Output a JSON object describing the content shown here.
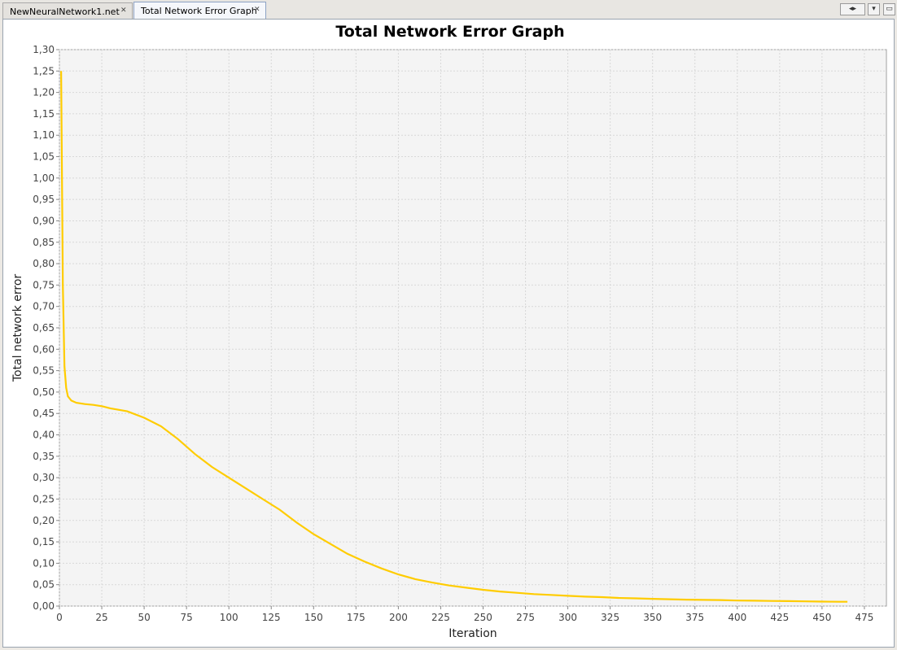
{
  "tabs": [
    {
      "label": "NewNeuralNetwork1.net",
      "active": false,
      "close_icon": "close-icon"
    },
    {
      "label": "Total Network Error Graph",
      "active": true,
      "close_icon": "close-icon"
    }
  ],
  "tab_controls": {
    "scroll_left_icon": "chevron-left-icon",
    "scroll_right_icon": "chevron-right-icon",
    "dropdown_icon": "chevron-down-icon",
    "maximize_icon": "maximize-icon"
  },
  "colors": {
    "line": "#ffcc00",
    "plot_bg": "#f4f4f4",
    "grid": "#d8d8d8"
  },
  "chart_data": {
    "type": "line",
    "title": "Total Network Error Graph",
    "xlabel": "Iteration",
    "ylabel": "Total network error",
    "xlim": [
      0,
      488
    ],
    "ylim": [
      0,
      1.3
    ],
    "x_ticks": [
      0,
      25,
      50,
      75,
      100,
      125,
      150,
      175,
      200,
      225,
      250,
      275,
      300,
      325,
      350,
      375,
      400,
      425,
      450,
      475
    ],
    "y_ticks": [
      "0,00",
      "0,05",
      "0,10",
      "0,15",
      "0,20",
      "0,25",
      "0,30",
      "0,35",
      "0,40",
      "0,45",
      "0,50",
      "0,55",
      "0,60",
      "0,65",
      "0,70",
      "0,75",
      "0,80",
      "0,85",
      "0,90",
      "0,95",
      "1,00",
      "1,05",
      "1,10",
      "1,15",
      "1,20",
      "1,25",
      "1,30"
    ],
    "grid": true,
    "legend": "none",
    "series": [
      {
        "x": [
          1,
          2,
          3,
          4,
          5,
          7,
          10,
          15,
          20,
          25,
          30,
          40,
          50,
          60,
          70,
          80,
          90,
          100,
          110,
          120,
          130,
          140,
          150,
          160,
          170,
          180,
          190,
          200,
          210,
          220,
          230,
          240,
          250,
          260,
          270,
          280,
          290,
          300,
          310,
          320,
          330,
          340,
          350,
          360,
          370,
          380,
          390,
          400,
          410,
          420,
          430,
          440,
          450,
          460,
          465
        ],
        "y": [
          1.25,
          0.75,
          0.56,
          0.51,
          0.49,
          0.48,
          0.475,
          0.472,
          0.47,
          0.467,
          0.462,
          0.455,
          0.44,
          0.42,
          0.39,
          0.355,
          0.325,
          0.3,
          0.275,
          0.25,
          0.225,
          0.195,
          0.168,
          0.145,
          0.122,
          0.104,
          0.088,
          0.074,
          0.063,
          0.055,
          0.048,
          0.043,
          0.038,
          0.034,
          0.031,
          0.028,
          0.026,
          0.024,
          0.022,
          0.021,
          0.019,
          0.018,
          0.017,
          0.016,
          0.015,
          0.0145,
          0.014,
          0.013,
          0.0125,
          0.012,
          0.0115,
          0.011,
          0.0105,
          0.01,
          0.01
        ]
      }
    ]
  }
}
